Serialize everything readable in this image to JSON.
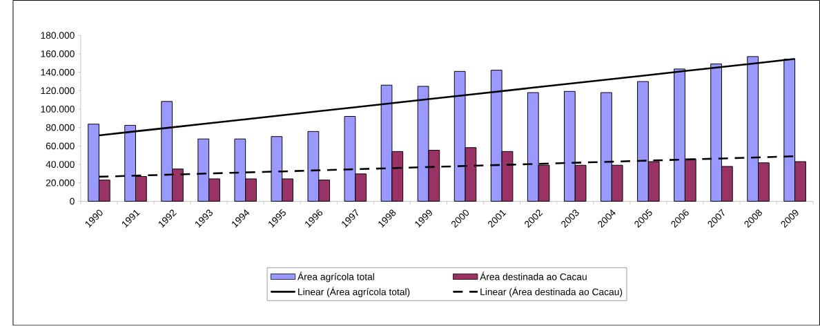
{
  "chart_data": {
    "type": "bar",
    "categories": [
      "1990",
      "1991",
      "1992",
      "1993",
      "1994",
      "1995",
      "1996",
      "1997",
      "1998",
      "1999",
      "2000",
      "2001",
      "2002",
      "2003",
      "2004",
      "2005",
      "2006",
      "2007",
      "2008",
      "2009"
    ],
    "series": [
      {
        "name": "Área agrícola total",
        "color": "#9999ff",
        "values": [
          83700,
          82400,
          108300,
          67600,
          67600,
          70200,
          75700,
          92100,
          126000,
          124700,
          140900,
          142200,
          117900,
          119200,
          117900,
          129900,
          143500,
          149000,
          157000,
          154200
        ]
      },
      {
        "name": "Área destinada ao Cacau",
        "color": "#993366",
        "values": [
          23000,
          26900,
          35000,
          24300,
          24300,
          24300,
          23000,
          29700,
          54000,
          55300,
          58200,
          54000,
          39100,
          39100,
          39100,
          43000,
          45900,
          37800,
          41700,
          43000
        ]
      },
      {
        "name": "Linear (Área agrícola total)",
        "type": "line",
        "color": "#000000",
        "line_style": "solid",
        "values": [
          71500,
          75900,
          80200,
          84600,
          88900,
          93300,
          97700,
          102000,
          106400,
          110800,
          115100,
          119500,
          123900,
          128200,
          132600,
          136900,
          141300,
          145700,
          150000,
          154400
        ]
      },
      {
        "name": "Linear (Área destinada ao Cacau)",
        "type": "line",
        "color": "#000000",
        "line_style": "dashed",
        "values": [
          26600,
          27800,
          28900,
          30100,
          31300,
          32400,
          33600,
          34800,
          35900,
          37100,
          38300,
          39400,
          40600,
          41800,
          42900,
          44100,
          45300,
          46400,
          47600,
          48800
        ]
      }
    ],
    "ylim": [
      0,
      180000
    ],
    "yticks": [
      0,
      {
        "value": 20000,
        "label": "20.000"
      },
      {
        "value": 40000,
        "label": "40.000"
      },
      {
        "value": 60000,
        "label": "60.000"
      },
      {
        "value": 80000,
        "label": "80.000"
      },
      {
        "value": 100000,
        "label": "100.000"
      },
      {
        "value": 120000,
        "label": "120.000"
      },
      {
        "value": 140000,
        "label": "140.000"
      },
      {
        "value": 160000,
        "label": "160.000"
      },
      {
        "value": 180000,
        "label": "180.000"
      }
    ],
    "legend": "bottom",
    "marker": "none"
  }
}
